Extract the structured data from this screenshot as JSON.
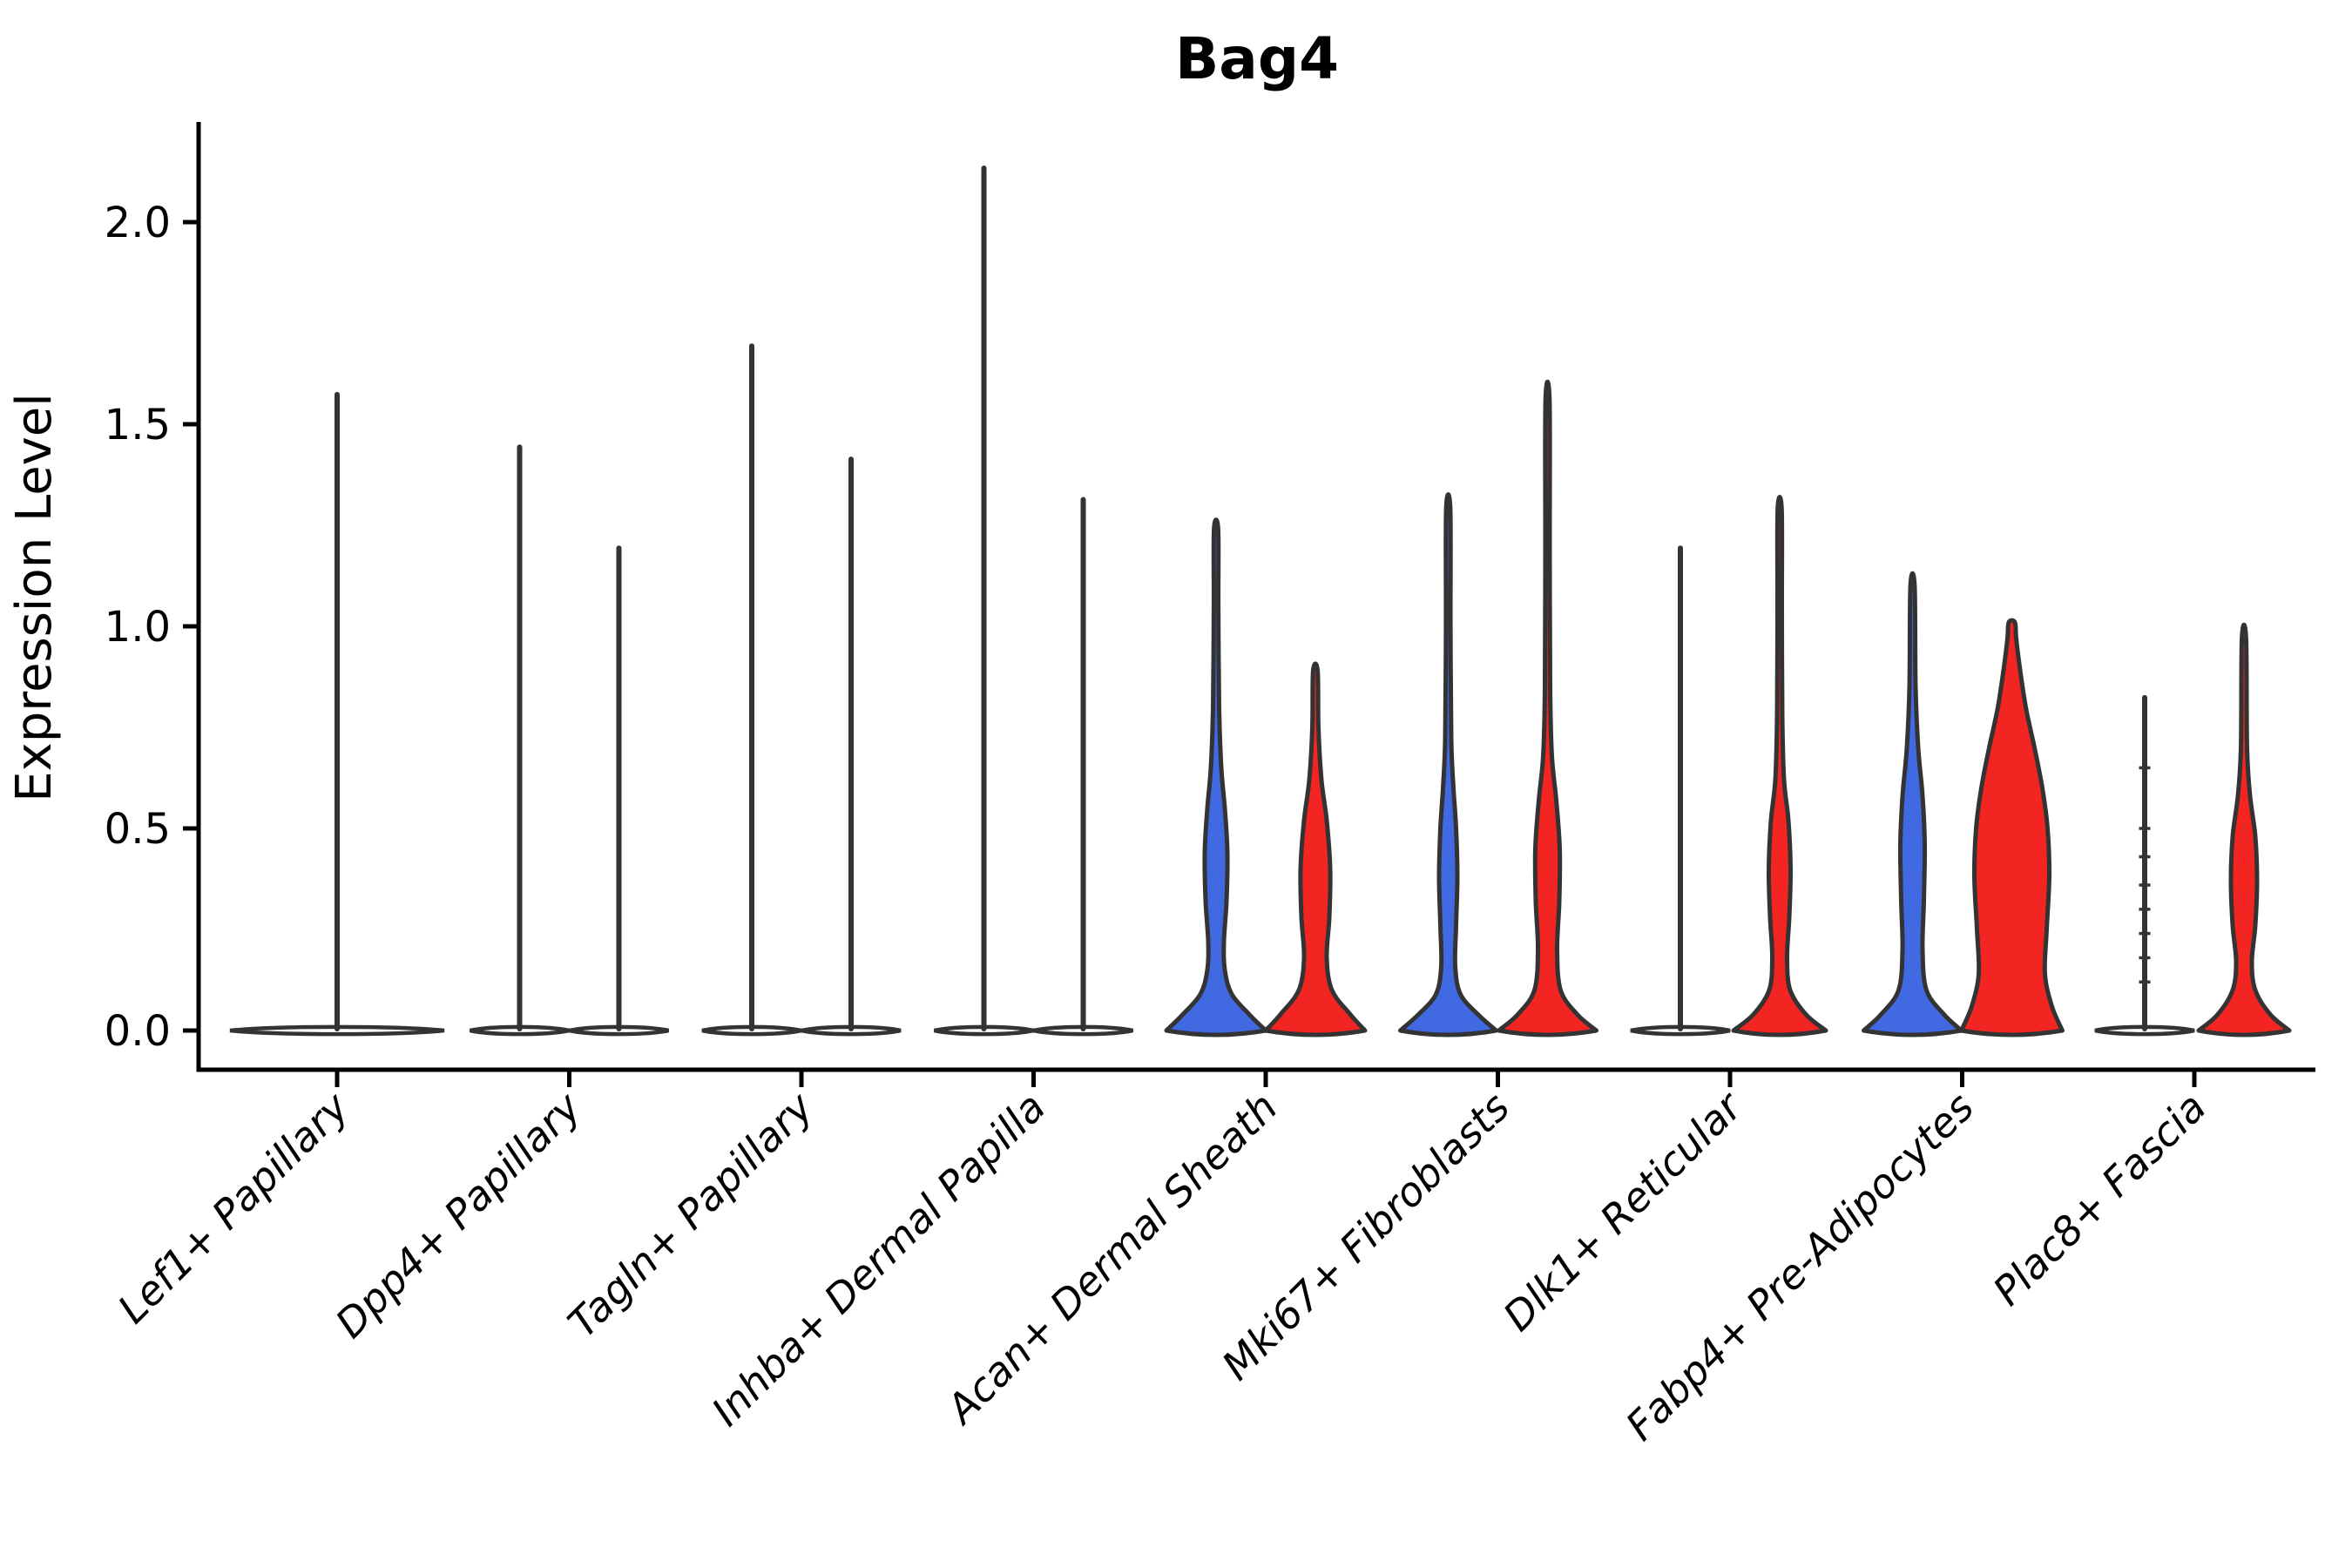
{
  "chart_data": {
    "type": "violin",
    "title": "Bag4",
    "ylabel": "Expression Level",
    "xlabel": "",
    "grid": false,
    "legend_position": "none",
    "ytick_labels": [
      "0.0",
      "0.5",
      "1.0",
      "1.5",
      "2.0"
    ],
    "ytick_values": [
      0,
      0.5,
      1.0,
      1.5,
      2.0
    ],
    "ylim": [
      -0.1,
      2.24
    ],
    "categories": [
      "Lef1+ Papillary",
      "Dpp4+ Papillary",
      "Tagln+ Papillary",
      "Inhba+ Dermal Papilla",
      "Acan+ Dermal Sheath",
      "Mki67+ Fibroblasts",
      "Dlk1+ Reticular",
      "Fabp4+ Pre-Adipocytes",
      "Plac8+ Fascia"
    ],
    "colors": {
      "blue": "#4169E1",
      "red": "#F22522",
      "outline": "#333333",
      "axis": "#000000",
      "background": "#FFFFFF"
    },
    "violins": [
      {
        "category": "Lef1+ Papillary",
        "slot": "single",
        "style": "spike",
        "fill": "white",
        "max": 1.58,
        "base_halfwidth": 123
      },
      {
        "category": "Dpp4+ Papillary",
        "slot": "left",
        "style": "spike",
        "fill": "white",
        "max": 1.45,
        "base_halfwidth": 57
      },
      {
        "category": "Dpp4+ Papillary",
        "slot": "right",
        "style": "spike",
        "fill": "white",
        "max": 1.2,
        "base_halfwidth": 57
      },
      {
        "category": "Tagln+ Papillary",
        "slot": "left",
        "style": "spike",
        "fill": "white",
        "max": 1.7,
        "base_halfwidth": 57
      },
      {
        "category": "Tagln+ Papillary",
        "slot": "right",
        "style": "spike",
        "fill": "white",
        "max": 1.42,
        "base_halfwidth": 57
      },
      {
        "category": "Inhba+ Dermal Papilla",
        "slot": "left",
        "style": "spike",
        "fill": "white",
        "max": 2.14,
        "base_halfwidth": 57
      },
      {
        "category": "Inhba+ Dermal Papilla",
        "slot": "right",
        "style": "spike",
        "fill": "white",
        "max": 1.32,
        "base_halfwidth": 57
      },
      {
        "category": "Acan+ Dermal Sheath",
        "slot": "left",
        "style": "violin",
        "fill": "blue",
        "max": 1.24,
        "profile": [
          [
            0,
            57
          ],
          [
            0.04,
            38
          ],
          [
            0.09,
            18
          ],
          [
            0.15,
            10
          ],
          [
            0.22,
            9
          ],
          [
            0.32,
            12
          ],
          [
            0.44,
            13
          ],
          [
            0.55,
            10
          ],
          [
            0.65,
            6
          ],
          [
            0.8,
            3.5
          ],
          [
            1.05,
            2.6
          ],
          [
            1.24,
            2.4
          ]
        ]
      },
      {
        "category": "Acan+ Dermal Sheath",
        "slot": "right",
        "style": "violin",
        "fill": "red",
        "max": 0.89,
        "profile": [
          [
            0,
            57
          ],
          [
            0.04,
            40
          ],
          [
            0.1,
            19
          ],
          [
            0.18,
            13
          ],
          [
            0.28,
            16
          ],
          [
            0.4,
            17
          ],
          [
            0.52,
            13
          ],
          [
            0.62,
            7
          ],
          [
            0.75,
            3.5
          ],
          [
            0.89,
            2.6
          ]
        ]
      },
      {
        "category": "Mki67+ Fibroblasts",
        "slot": "left",
        "style": "violin",
        "fill": "blue",
        "max": 1.29,
        "profile": [
          [
            0,
            55
          ],
          [
            0.04,
            34
          ],
          [
            0.09,
            14
          ],
          [
            0.16,
            8
          ],
          [
            0.26,
            9
          ],
          [
            0.38,
            10.5
          ],
          [
            0.5,
            9
          ],
          [
            0.6,
            6
          ],
          [
            0.72,
            3.5
          ],
          [
            1.0,
            2.6
          ],
          [
            1.29,
            2.4
          ]
        ]
      },
      {
        "category": "Mki67+ Fibroblasts",
        "slot": "right",
        "style": "violin",
        "fill": "red",
        "max": 1.56,
        "profile": [
          [
            0,
            56
          ],
          [
            0.04,
            34
          ],
          [
            0.1,
            15
          ],
          [
            0.2,
            11
          ],
          [
            0.32,
            13.5
          ],
          [
            0.45,
            14
          ],
          [
            0.57,
            10
          ],
          [
            0.68,
            5
          ],
          [
            0.85,
            3
          ],
          [
            1.2,
            2.5
          ],
          [
            1.56,
            2.3
          ]
        ]
      },
      {
        "category": "Dlk1+ Reticular",
        "slot": "left",
        "style": "spike",
        "fill": "white",
        "max": 1.2,
        "base_halfwidth": 57
      },
      {
        "category": "Dlk1+ Reticular",
        "slot": "right",
        "style": "violin",
        "fill": "red",
        "max": 1.29,
        "profile": [
          [
            0,
            53
          ],
          [
            0.04,
            30
          ],
          [
            0.1,
            12
          ],
          [
            0.18,
            8.5
          ],
          [
            0.28,
            11
          ],
          [
            0.4,
            12.5
          ],
          [
            0.52,
            10
          ],
          [
            0.62,
            5
          ],
          [
            0.78,
            3
          ],
          [
            1.05,
            2.5
          ],
          [
            1.29,
            2.3
          ]
        ]
      },
      {
        "category": "Fabp4+ Pre-Adipocytes",
        "slot": "left",
        "style": "violin",
        "fill": "blue",
        "max": 1.1,
        "profile": [
          [
            0,
            56
          ],
          [
            0.04,
            36
          ],
          [
            0.1,
            16
          ],
          [
            0.2,
            11.5
          ],
          [
            0.32,
            13
          ],
          [
            0.46,
            14
          ],
          [
            0.58,
            11.5
          ],
          [
            0.7,
            6.5
          ],
          [
            0.85,
            3.5
          ],
          [
            1.1,
            2.4
          ]
        ]
      },
      {
        "category": "Fabp4+ Pre-Adipocytes",
        "slot": "right",
        "style": "violin",
        "fill": "red",
        "max": 1.01,
        "profile": [
          [
            0,
            58
          ],
          [
            0.06,
            46
          ],
          [
            0.14,
            38
          ],
          [
            0.25,
            40
          ],
          [
            0.38,
            43
          ],
          [
            0.5,
            41
          ],
          [
            0.6,
            35
          ],
          [
            0.7,
            26
          ],
          [
            0.8,
            16
          ],
          [
            0.9,
            9
          ],
          [
            0.97,
            5
          ],
          [
            1.01,
            3.5
          ]
        ]
      },
      {
        "category": "Plac8+ Fascia",
        "slot": "left",
        "style": "spike",
        "fill": "white",
        "max": 0.83,
        "base_halfwidth": 57,
        "marks": [
          0.12,
          0.18,
          0.24,
          0.3,
          0.36,
          0.43,
          0.5,
          0.65
        ]
      },
      {
        "category": "Plac8+ Fascia",
        "slot": "right",
        "style": "violin",
        "fill": "red",
        "max": 0.97,
        "profile": [
          [
            0,
            52
          ],
          [
            0.04,
            30
          ],
          [
            0.1,
            13
          ],
          [
            0.17,
            9
          ],
          [
            0.26,
            13
          ],
          [
            0.37,
            15
          ],
          [
            0.48,
            13
          ],
          [
            0.58,
            7
          ],
          [
            0.7,
            3.5
          ],
          [
            0.97,
            2.4
          ]
        ]
      }
    ]
  }
}
